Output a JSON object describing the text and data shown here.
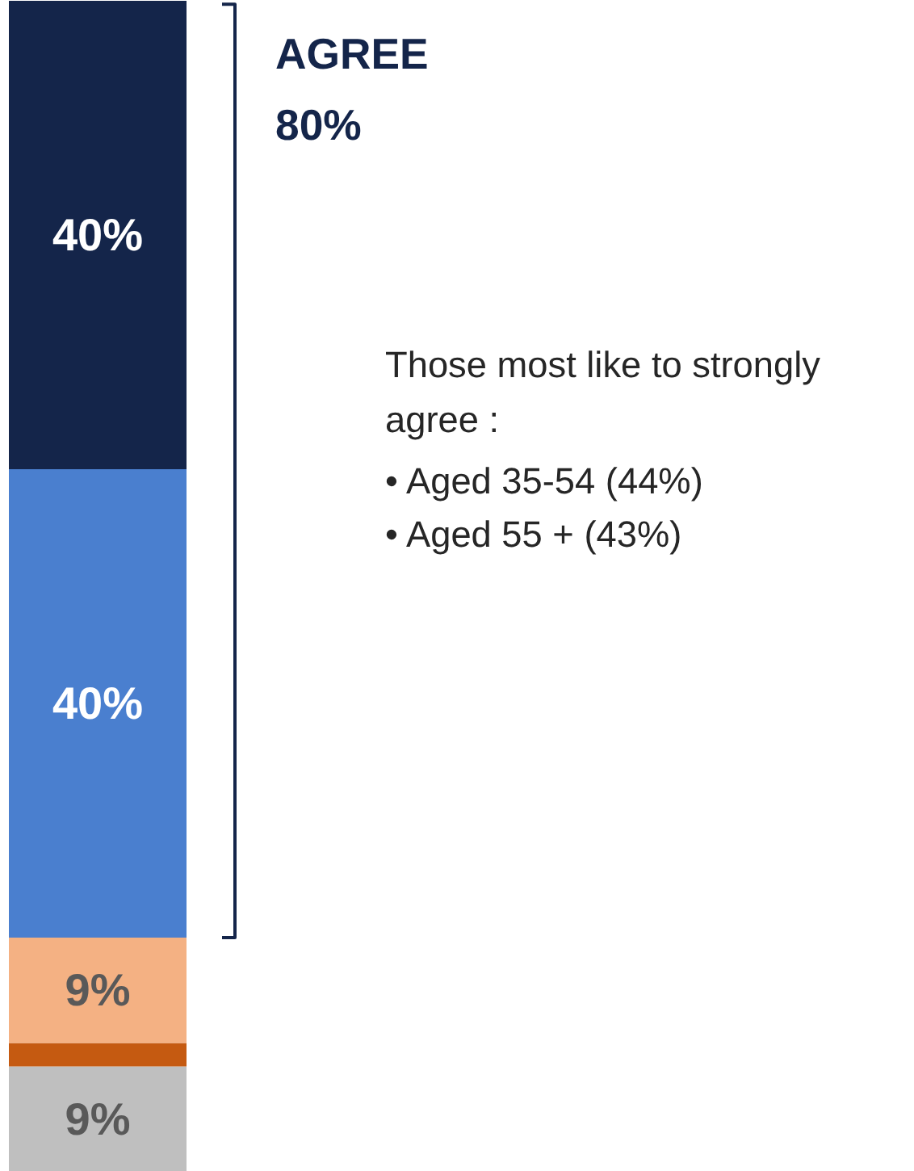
{
  "chart_data": {
    "type": "bar",
    "stacked": true,
    "categories": [
      null
    ],
    "series": [
      {
        "color": "#bfbfbf",
        "values": [
          9
        ],
        "value_labels": [
          "9%"
        ]
      },
      {
        "color": "#c55a11",
        "values": [
          2
        ],
        "value_labels": [
          null
        ]
      },
      {
        "color": "#f4b183",
        "values": [
          9
        ],
        "value_labels": [
          "9%"
        ]
      },
      {
        "color": "#4a7fcf",
        "values": [
          40
        ],
        "value_labels": [
          "40%"
        ]
      },
      {
        "color": "#14254a",
        "values": [
          40
        ],
        "value_labels": [
          "40%"
        ]
      }
    ],
    "annotations": [
      "AGREE",
      "80%",
      "Those most like to strongly agree :",
      "•  Aged 35-54 (44%)",
      "•  Aged 55 + (43%)"
    ]
  }
}
